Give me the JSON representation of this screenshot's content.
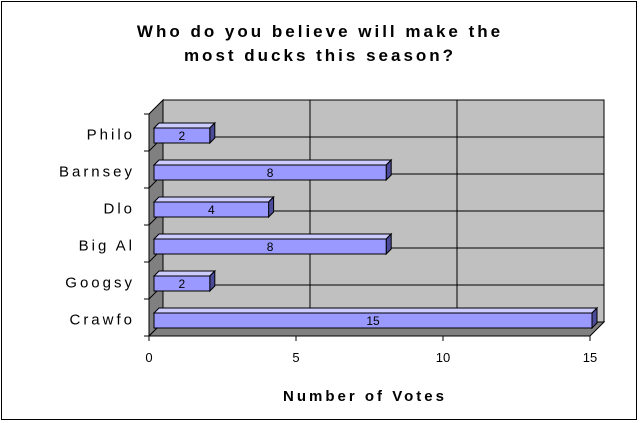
{
  "chart_data": {
    "type": "bar",
    "orientation": "horizontal",
    "title_lines": [
      "Who do you believe will make the",
      "most ducks this season?"
    ],
    "xlabel": "Number of Votes",
    "ylabel": "",
    "categories": [
      "Philo",
      "Barnsey",
      "Dlo",
      "Big Al",
      "Googsy",
      "Crawfo"
    ],
    "values": [
      2,
      8,
      4,
      8,
      2,
      15
    ],
    "xlim": [
      0,
      15
    ],
    "xticks": [
      0,
      5,
      10,
      15
    ],
    "grid": true,
    "legend": "none",
    "data_labels": true
  },
  "colors": {
    "bar_front": "#9999ff",
    "bar_top": "#ccccff",
    "bar_side": "#4b4b99",
    "plot_wall": "#c0c0c0",
    "plot_floor": "#808080"
  }
}
